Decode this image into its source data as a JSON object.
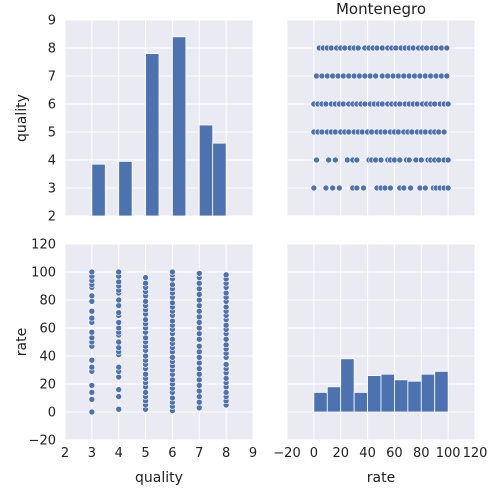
{
  "theme": {
    "panel_bg": "#eaeaf2",
    "grid": "#ffffff",
    "mark": "#4c72b0",
    "text": "#222222"
  },
  "chart_data": [
    {
      "panel": "quality_vs_quality",
      "type": "bar",
      "title": "",
      "xlabel": "",
      "ylabel": "quality",
      "xlim": [
        2,
        9
      ],
      "ylim": [
        2,
        9
      ],
      "x_ticks": [],
      "y_ticks": [
        "2",
        "3",
        "4",
        "5",
        "6",
        "7",
        "8",
        "9"
      ],
      "bars": [
        {
          "x0": 3.0,
          "x1": 3.5,
          "top": 3.85
        },
        {
          "x0": 4.0,
          "x1": 4.5,
          "top": 3.95
        },
        {
          "x0": 5.0,
          "x1": 5.5,
          "top": 7.8
        },
        {
          "x0": 6.0,
          "x1": 6.5,
          "top": 8.4
        },
        {
          "x0": 7.0,
          "x1": 7.5,
          "top": 5.25
        },
        {
          "x0": 7.5,
          "x1": 8.0,
          "top": 4.6
        }
      ],
      "bar_baseline": 2,
      "grid": true
    },
    {
      "panel": "rate_vs_quality",
      "type": "scatter",
      "title": "Montenegro",
      "xlabel": "",
      "ylabel": "",
      "xlim": [
        -20,
        120
      ],
      "ylim": [
        2,
        9
      ],
      "x_ticks": [],
      "y_ticks": [],
      "rows": [
        {
          "y": 3,
          "x": [
            0,
            9,
            14,
            19,
            29,
            32,
            37,
            47,
            50,
            53,
            57,
            64,
            67,
            72,
            79,
            83,
            89,
            91,
            94,
            97,
            100
          ]
        },
        {
          "y": 4,
          "x": [
            2,
            11,
            16,
            25,
            29,
            32,
            41,
            43,
            46,
            50,
            55,
            57,
            60,
            64,
            69,
            71,
            76,
            80,
            85,
            87,
            90,
            93,
            97,
            100
          ]
        },
        {
          "y": 5,
          "x": [
            0,
            3,
            6,
            10,
            13,
            16,
            20,
            23,
            26,
            30,
            33,
            36,
            40,
            43,
            47,
            50,
            53,
            57,
            60,
            63,
            67,
            70,
            73,
            77,
            80,
            83,
            87,
            90,
            93,
            97
          ]
        },
        {
          "y": 6,
          "x": [
            0,
            3,
            6,
            9,
            13,
            16,
            19,
            22,
            26,
            29,
            32,
            35,
            38,
            42,
            45,
            48,
            51,
            55,
            58,
            61,
            64,
            68,
            71,
            74,
            77,
            81,
            84,
            87,
            90,
            94,
            97,
            100
          ]
        },
        {
          "y": 7,
          "x": [
            2,
            6,
            10,
            14,
            18,
            22,
            26,
            30,
            34,
            38,
            42,
            46,
            51,
            55,
            59,
            63,
            67,
            71,
            75,
            79,
            83,
            87,
            91,
            95,
            99
          ]
        },
        {
          "y": 8,
          "x": [
            4,
            7,
            10,
            13,
            17,
            20,
            23,
            27,
            30,
            33,
            38,
            41,
            44,
            47,
            51,
            55,
            58,
            61,
            65,
            68,
            71,
            74,
            78,
            81,
            84,
            88,
            91,
            95,
            99
          ]
        }
      ],
      "grid": true
    },
    {
      "panel": "quality_vs_rate",
      "type": "scatter",
      "title": "",
      "xlabel": "quality",
      "ylabel": "rate",
      "xlim": [
        2,
        9
      ],
      "ylim": [
        -20,
        120
      ],
      "x_ticks": [
        "2",
        "3",
        "4",
        "5",
        "6",
        "7",
        "8",
        "9"
      ],
      "y_ticks": [
        "−20",
        "0",
        "20",
        "40",
        "60",
        "80",
        "100",
        "120"
      ],
      "columns": [
        {
          "x": 3,
          "y": [
            0,
            9,
            14,
            19,
            29,
            32,
            37,
            47,
            50,
            53,
            57,
            64,
            67,
            72,
            79,
            83,
            89,
            91,
            94,
            97,
            100
          ]
        },
        {
          "x": 4,
          "y": [
            2,
            11,
            16,
            25,
            29,
            32,
            41,
            43,
            46,
            50,
            55,
            57,
            60,
            64,
            69,
            71,
            76,
            80,
            85,
            87,
            90,
            93,
            97,
            100
          ]
        },
        {
          "x": 5,
          "y": [
            2,
            5,
            8,
            11,
            14,
            18,
            21,
            24,
            27,
            31,
            34,
            37,
            40,
            44,
            47,
            50,
            53,
            57,
            60,
            63,
            66,
            70,
            73,
            76,
            79,
            83,
            86,
            89,
            92,
            96
          ]
        },
        {
          "x": 6,
          "y": [
            1,
            4,
            7,
            10,
            14,
            17,
            20,
            23,
            27,
            30,
            33,
            36,
            39,
            43,
            46,
            49,
            52,
            56,
            59,
            62,
            65,
            69,
            72,
            75,
            78,
            82,
            85,
            88,
            91,
            95,
            98,
            100
          ]
        },
        {
          "x": 7,
          "y": [
            3,
            7,
            11,
            15,
            19,
            23,
            27,
            31,
            35,
            39,
            43,
            47,
            52,
            56,
            60,
            64,
            68,
            72,
            76,
            80,
            84,
            88,
            92,
            96,
            99
          ]
        },
        {
          "x": 8,
          "y": [
            5,
            8,
            11,
            14,
            18,
            21,
            24,
            28,
            31,
            34,
            39,
            42,
            45,
            48,
            52,
            56,
            59,
            62,
            66,
            69,
            72,
            75,
            79,
            82,
            85,
            89,
            92,
            95,
            98
          ]
        }
      ],
      "grid": true
    },
    {
      "panel": "rate_vs_rate",
      "type": "bar",
      "title": "",
      "xlabel": "rate",
      "ylabel": "",
      "xlim": [
        -20,
        120
      ],
      "ylim": [
        -20,
        120
      ],
      "x_ticks": [
        "−20",
        "0",
        "20",
        "40",
        "60",
        "80",
        "100",
        "120"
      ],
      "y_ticks": [],
      "bin_edges": [
        0,
        10,
        20,
        30,
        40,
        50,
        60,
        70,
        80,
        90,
        100
      ],
      "bar_tops": [
        14,
        18,
        38,
        14,
        26,
        27,
        23,
        22,
        27,
        29
      ],
      "bar_baseline": 0,
      "grid": true
    }
  ]
}
